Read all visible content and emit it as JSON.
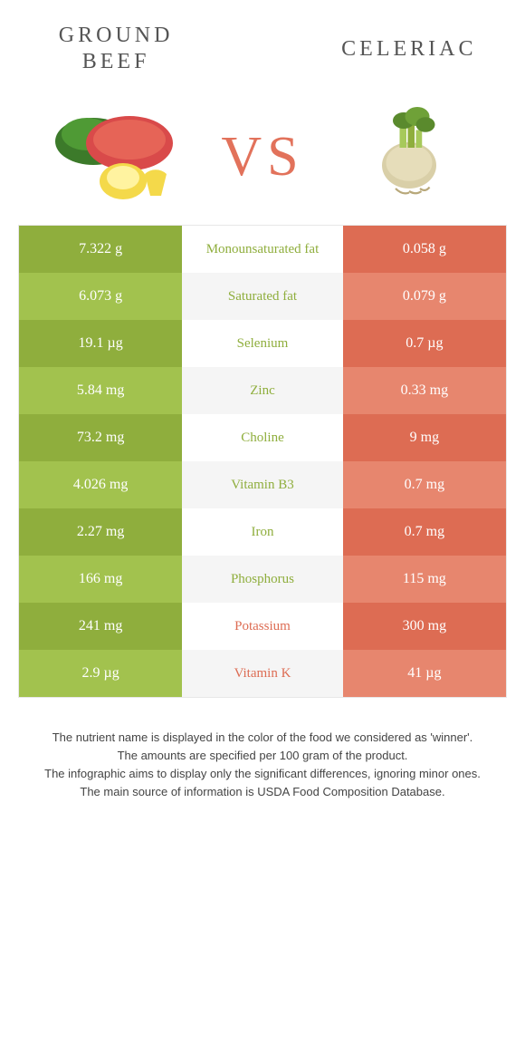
{
  "foods": {
    "left": {
      "title": "GROUND\nBEEF",
      "color_strong": "#8fae3d",
      "color_soft": "#a2c24e"
    },
    "right": {
      "title": "CELERIAC",
      "color_strong": "#dd6c53",
      "color_soft": "#e7866e"
    }
  },
  "vs": "VS",
  "label_colors": {
    "left_wins": "#8fae3d",
    "right_wins": "#dd6c53"
  },
  "rows": [
    {
      "left": "7.322 g",
      "label": "Monounsaturated fat",
      "right": "0.058 g",
      "winner": "left"
    },
    {
      "left": "6.073 g",
      "label": "Saturated fat",
      "right": "0.079 g",
      "winner": "left"
    },
    {
      "left": "19.1 µg",
      "label": "Selenium",
      "right": "0.7 µg",
      "winner": "left"
    },
    {
      "left": "5.84 mg",
      "label": "Zinc",
      "right": "0.33 mg",
      "winner": "left"
    },
    {
      "left": "73.2 mg",
      "label": "Choline",
      "right": "9 mg",
      "winner": "left"
    },
    {
      "left": "4.026 mg",
      "label": "Vitamin B3",
      "right": "0.7 mg",
      "winner": "left"
    },
    {
      "left": "2.27 mg",
      "label": "Iron",
      "right": "0.7 mg",
      "winner": "left"
    },
    {
      "left": "166 mg",
      "label": "Phosphorus",
      "right": "115 mg",
      "winner": "left"
    },
    {
      "left": "241 mg",
      "label": "Potassium",
      "right": "300 mg",
      "winner": "right"
    },
    {
      "left": "2.9 µg",
      "label": "Vitamin K",
      "right": "41 µg",
      "winner": "right"
    }
  ],
  "footer": [
    "The nutrient name is displayed in the color of the food we considered as 'winner'.",
    "The amounts are specified per 100 gram of the product.",
    "The infographic aims to display only the significant differences, ignoring minor ones.",
    "The main source of information is USDA Food Composition Database."
  ]
}
